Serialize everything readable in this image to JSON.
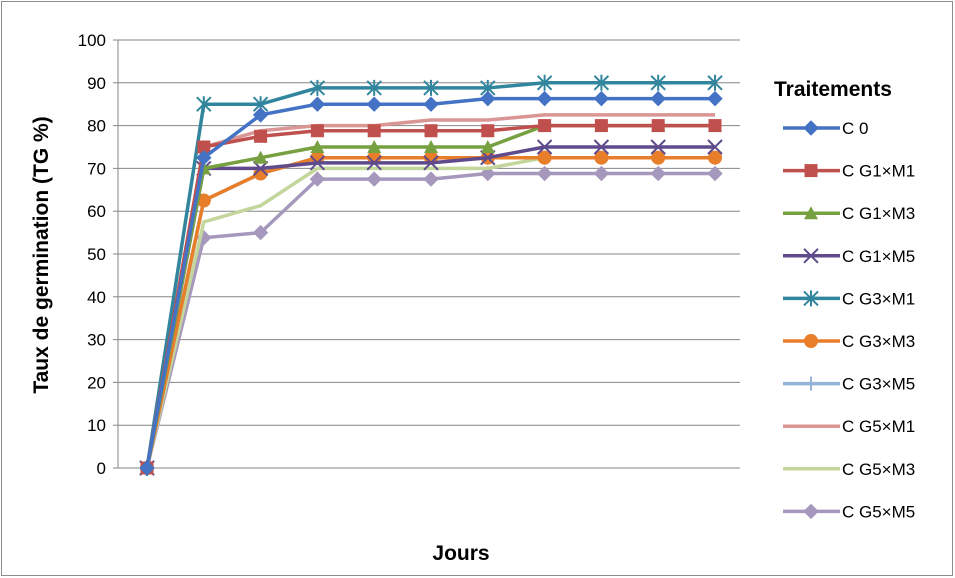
{
  "chart_data": {
    "type": "line",
    "title": "",
    "xlabel": "Jours",
    "ylabel": "Taux de germination (TG %)",
    "ylim": [
      0,
      100
    ],
    "yticks": [
      "0",
      "10",
      "20",
      "30",
      "40",
      "50",
      "60",
      "70",
      "80",
      "90",
      "100"
    ],
    "legend_title": "Traitements",
    "legend_position": "right",
    "grid": "horizontal",
    "series": [
      {
        "name": "C 0",
        "color": "#4472c4",
        "marker": "diamond",
        "values": [
          0,
          72.5,
          82.5,
          85,
          85,
          85,
          86.3,
          86.3,
          86.3,
          86.3,
          86.3
        ]
      },
      {
        "name": "C G1×M1",
        "color": "#c0504d",
        "marker": "square",
        "values": [
          0,
          75,
          77.5,
          78.8,
          78.8,
          78.8,
          78.8,
          80,
          80,
          80,
          80
        ]
      },
      {
        "name": "C  G1×M3",
        "color": "#77a040",
        "marker": "triangle",
        "values": [
          0,
          70,
          72.5,
          75,
          75,
          75,
          75,
          80,
          80,
          80,
          80
        ]
      },
      {
        "name": "C  G1×M5",
        "color": "#5f4b8b",
        "marker": "x",
        "values": [
          0,
          70,
          70,
          71.3,
          71.3,
          71.3,
          72.5,
          75,
          75,
          75,
          75
        ]
      },
      {
        "name": "C  G3×M1",
        "color": "#31859c",
        "marker": "star",
        "values": [
          0,
          85,
          85,
          88.8,
          88.8,
          88.8,
          88.8,
          90,
          90,
          90,
          90
        ]
      },
      {
        "name": "C  G3×M3",
        "color": "#e87d2a",
        "marker": "circle",
        "values": [
          0,
          62.5,
          68.8,
          72.5,
          72.5,
          72.5,
          72.5,
          72.5,
          72.5,
          72.5,
          72.5
        ]
      },
      {
        "name": "C  G3×M5",
        "color": "#95b3d7",
        "marker": "plus",
        "values": [
          0,
          62.5,
          68.8,
          72.5,
          72.5,
          72.5,
          72.5,
          72.5,
          72.5,
          72.5,
          72.5
        ]
      },
      {
        "name": "C G5×M1",
        "color": "#da9694",
        "marker": "none",
        "values": [
          0,
          75,
          78.8,
          80,
          80,
          81.3,
          81.3,
          82.5,
          82.5,
          82.5,
          82.5
        ]
      },
      {
        "name": "C  G5×M3",
        "color": "#c3d69b",
        "marker": "none",
        "values": [
          0,
          57.5,
          61.3,
          70,
          70,
          70,
          70,
          72.5,
          72.5,
          72.5,
          72.5
        ]
      },
      {
        "name": "C  G5×M5",
        "color": "#a598bc",
        "marker": "diamond",
        "values": [
          0,
          53.8,
          55,
          67.5,
          67.5,
          67.5,
          68.8,
          68.8,
          68.8,
          68.8,
          68.8
        ]
      }
    ]
  }
}
